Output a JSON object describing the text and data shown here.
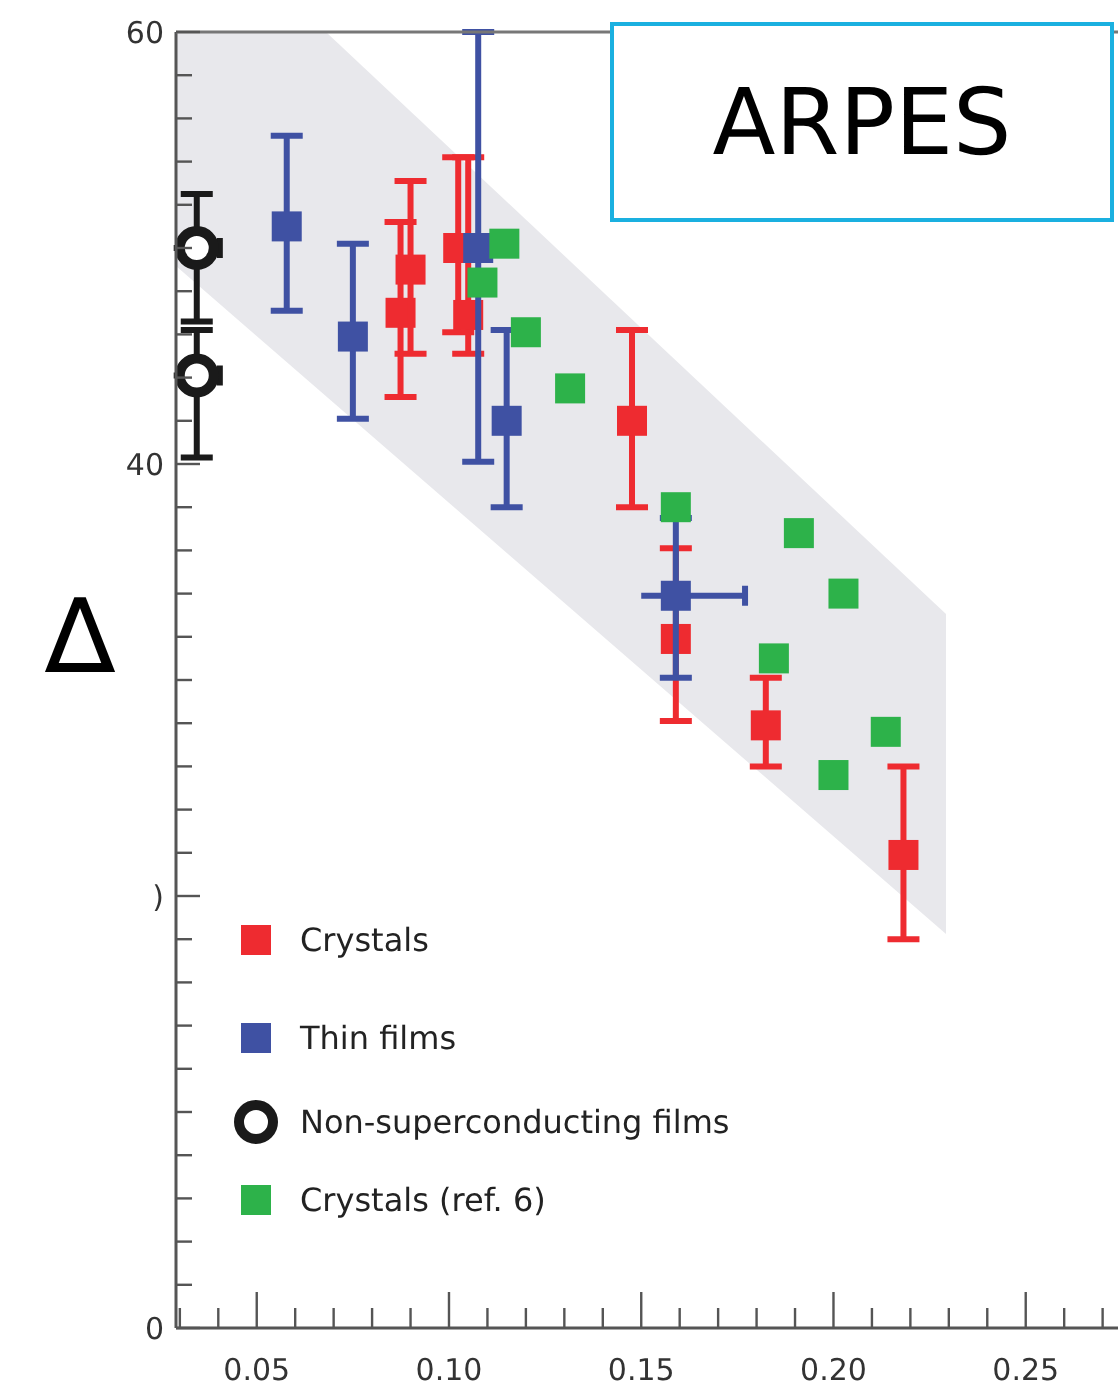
{
  "chart_data": {
    "type": "scatter",
    "ylabel": "∆",
    "annotations": [
      "ARPES"
    ],
    "legend": "bottom left",
    "xlim": [
      0.029,
      0.274
    ],
    "ylim": [
      0,
      60
    ],
    "xticks": [
      {
        "value": 0.03,
        "label": null
      },
      {
        "value": 0.04,
        "label": null
      },
      0.05,
      {
        "value": 0.06,
        "label": null
      },
      {
        "value": 0.07,
        "label": null
      },
      {
        "value": 0.08,
        "label": null
      },
      {
        "value": 0.09,
        "label": null
      },
      {
        "value": 0.1,
        "label": "0.10"
      },
      {
        "value": 0.11,
        "label": null
      },
      {
        "value": 0.12,
        "label": null
      },
      {
        "value": 0.13,
        "label": null
      },
      {
        "value": 0.14,
        "label": null
      },
      0.15,
      {
        "value": 0.16,
        "label": null
      },
      {
        "value": 0.17,
        "label": null
      },
      {
        "value": 0.18,
        "label": null
      },
      {
        "value": 0.19,
        "label": null
      },
      {
        "value": 0.2,
        "label": "0.20"
      },
      {
        "value": 0.21,
        "label": null
      },
      {
        "value": 0.22,
        "label": null
      },
      {
        "value": 0.23,
        "label": null
      },
      {
        "value": 0.24,
        "label": null
      },
      0.25,
      {
        "value": 0.26,
        "label": null
      },
      {
        "value": 0.27,
        "label": null
      }
    ],
    "yticks": [
      0,
      {
        "value": 2,
        "label": null
      },
      {
        "value": 4,
        "label": null
      },
      {
        "value": 6,
        "label": null
      },
      {
        "value": 8,
        "label": null
      },
      {
        "value": 10,
        "label": null
      },
      {
        "value": 12,
        "label": null
      },
      {
        "value": 14,
        "label": null
      },
      {
        "value": 16,
        "label": null
      },
      {
        "value": 18,
        "label": null
      },
      {
        "value": 20,
        "label": ")"
      },
      {
        "value": 22,
        "label": null
      },
      {
        "value": 24,
        "label": null
      },
      {
        "value": 26,
        "label": null
      },
      {
        "value": 28,
        "label": null
      },
      {
        "value": 30,
        "label": null
      },
      {
        "value": 32,
        "label": null
      },
      {
        "value": 34,
        "label": null
      },
      {
        "value": 36,
        "label": null
      },
      {
        "value": 38,
        "label": null
      },
      40,
      {
        "value": 42,
        "label": null
      },
      {
        "value": 44,
        "label": null
      },
      {
        "value": 46,
        "label": null
      },
      {
        "value": 48,
        "label": null
      },
      {
        "value": 50,
        "label": null
      },
      {
        "value": 52,
        "label": null
      },
      {
        "value": 54,
        "label": null
      },
      {
        "value": 56,
        "label": null
      },
      {
        "value": 58,
        "label": null
      },
      60
    ],
    "series": [
      {
        "name": "Crystals",
        "color": "#ee2b30",
        "marker": "square",
        "x": [
          0.0874,
          0.09,
          0.1024,
          0.105,
          0.1476,
          0.159,
          0.1824,
          0.2182
        ],
        "values": [
          47.0,
          49.0,
          50.0,
          46.9,
          42.0,
          31.9,
          27.9,
          21.9
        ],
        "errors": [
          [
            43.1,
            51.2
          ],
          [
            45.1,
            53.1
          ],
          [
            46.1,
            54.2
          ],
          [
            45.1,
            54.2
          ],
          [
            38.0,
            46.2
          ],
          [
            28.1,
            36.1
          ],
          [
            26.0,
            30.1
          ],
          [
            18.0,
            26.0
          ]
        ]
      },
      {
        "name": "Thin films",
        "color": "#3f51a3",
        "marker": "square",
        "x": [
          0.0578,
          0.075,
          0.1076,
          0.115,
          0.159
        ],
        "values": [
          51.0,
          45.9,
          50.0,
          42.0,
          33.9
        ],
        "errors": [
          [
            47.1,
            55.2
          ],
          [
            42.1,
            50.2
          ],
          [
            40.1,
            60
          ],
          [
            38.0,
            46.2
          ],
          [
            30.1,
            37.5
          ]
        ],
        "xerrors": [
          null,
          null,
          null,
          null,
          [
            0.15,
            0.177
          ]
        ]
      },
      {
        "name": "Non-superconducting films",
        "color": "#1a1a1a",
        "marker": "circle",
        "x": [
          0.0344,
          0.0344
        ],
        "values": [
          50.0,
          44.1
        ],
        "errors": [
          [
            46.6,
            52.5
          ],
          [
            40.3,
            46.2
          ]
        ],
        "xerrors": [
          0.006,
          0.006
        ]
      },
      {
        "name": "Crystals (ref. 6)",
        "color": "#2db24a",
        "marker": "square",
        "x": [
          0.1144,
          0.1087,
          0.12,
          0.1315,
          0.159,
          0.191,
          0.2026,
          0.1845,
          0.2136,
          0.2
        ],
        "values": [
          50.2,
          48.4,
          46.1,
          43.5,
          38.0,
          36.8,
          34.0,
          31.0,
          27.6,
          25.6
        ]
      }
    ]
  }
}
